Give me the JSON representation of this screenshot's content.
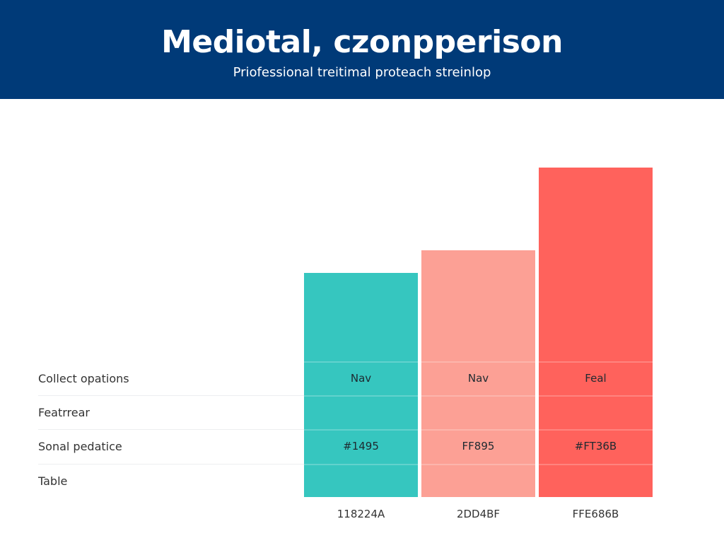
{
  "header": {
    "title": "Mediotal, czonpperison",
    "subtitle": "Priofessional treitimal proteach streinlop"
  },
  "chart_data": {
    "type": "bar",
    "title": "Mediotal, czonpperison",
    "subtitle": "Priofessional treitimal proteach streinlop",
    "categories": [
      "118224A",
      "2DD4BF",
      "FFE686B"
    ],
    "values": [
      68,
      75,
      100
    ],
    "value_note": "relative bar heights, tallest = 100 (no value axis shown)",
    "colors": [
      "#36c6bf",
      "#fca095",
      "#ff625c"
    ],
    "row_labels": [
      "Collect opations",
      "Featrrear",
      "Sonal pedatice",
      "Table"
    ],
    "cells": [
      [
        "Nav",
        "",
        "#1495",
        ""
      ],
      [
        "Nav",
        "",
        "FF895",
        ""
      ],
      [
        "Feal",
        "",
        "#FT36B",
        ""
      ]
    ],
    "grid": false,
    "legend": "none"
  }
}
